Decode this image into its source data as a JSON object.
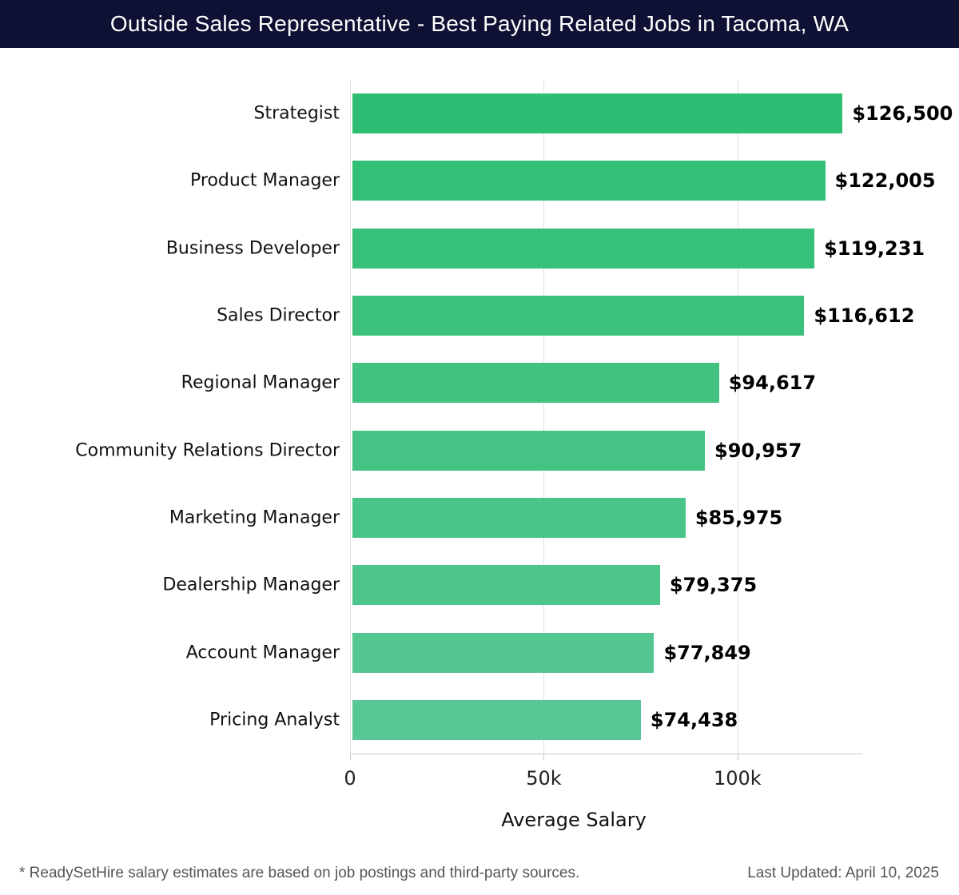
{
  "header": {
    "title": "Outside Sales Representative - Best Paying Related Jobs in Tacoma, WA",
    "bg_color": "#0e1133",
    "text_color": "#ffffff"
  },
  "chart_data": {
    "type": "bar",
    "orientation": "horizontal",
    "title": "Outside Sales Representative - Best Paying Related Jobs in Tacoma, WA",
    "categories": [
      "Strategist",
      "Product Manager",
      "Business Developer",
      "Sales Director",
      "Regional Manager",
      "Community Relations Director",
      "Marketing Manager",
      "Dealership Manager",
      "Account Manager",
      "Pricing Analyst"
    ],
    "values": [
      126500,
      122005,
      119231,
      116612,
      94617,
      90957,
      85975,
      79375,
      77849,
      74438
    ],
    "value_labels": [
      "$126,500",
      "$122,005",
      "$119,231",
      "$116,612",
      "$94,617",
      "$90,957",
      "$85,975",
      "$79,375",
      "$77,849",
      "$74,438"
    ],
    "bar_colors": [
      "#2ebe73",
      "#33bf76",
      "#37c07a",
      "#3cc17d",
      "#41c281",
      "#45c384",
      "#4ac588",
      "#4ec68b",
      "#53c78f",
      "#57c893"
    ],
    "xlabel": "Average Salary",
    "ylabel": "",
    "xlim": [
      0,
      132000
    ],
    "x_ticks": [
      {
        "label": "0",
        "value": 0
      },
      {
        "label": "50k",
        "value": 50000
      },
      {
        "label": "100k",
        "value": 100000
      }
    ],
    "grid": "vertical-lines-on",
    "legend": "none"
  },
  "footer": {
    "note": "* ReadySetHire salary estimates are based on job postings and third-party sources.",
    "last_updated": "Last Updated: April 10, 2025"
  }
}
